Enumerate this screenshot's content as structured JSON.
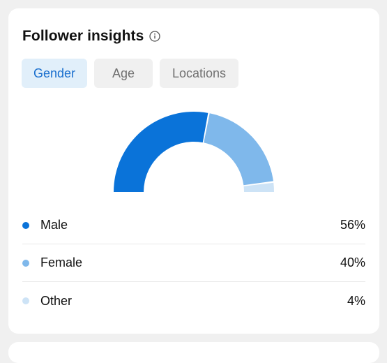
{
  "card": {
    "title": "Follower insights",
    "info_icon": "info-icon"
  },
  "tabs": [
    {
      "label": "Gender",
      "active": true
    },
    {
      "label": "Age",
      "active": false
    },
    {
      "label": "Locations",
      "active": false
    }
  ],
  "colors": {
    "accent": "#1a6fce",
    "male": "#0a73d9",
    "female": "#7fb8eb",
    "other": "#cde3f6"
  },
  "breakdown": [
    {
      "label": "Male",
      "value": "56%",
      "percent": 56,
      "color": "#0a73d9"
    },
    {
      "label": "Female",
      "value": "40%",
      "percent": 40,
      "color": "#7fb8eb"
    },
    {
      "label": "Other",
      "value": "4%",
      "percent": 4,
      "color": "#cde3f6"
    }
  ]
}
